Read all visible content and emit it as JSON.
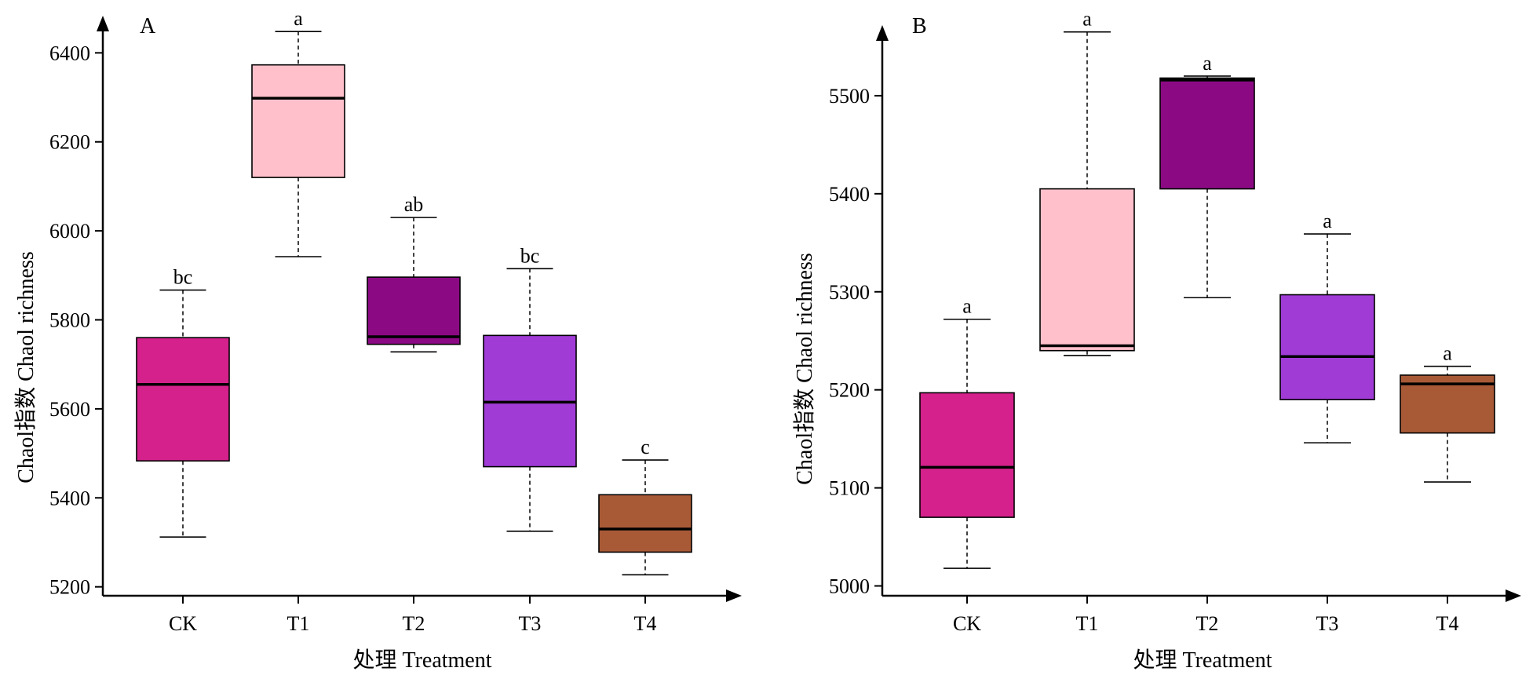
{
  "chart_data": [
    {
      "type": "boxplot",
      "panel_label": "A",
      "xlabel": "处理 Treatment",
      "ylabel": "Chaol指数 Chaol richness",
      "categories": [
        "CK",
        "T1",
        "T2",
        "T3",
        "T4"
      ],
      "ylim": [
        5180,
        6480
      ],
      "yticks": [
        5200,
        5400,
        5600,
        5800,
        6000,
        6200,
        6400
      ],
      "boxes": [
        {
          "name": "CK",
          "min": 5312,
          "q1": 5483,
          "median": 5655,
          "q3": 5760,
          "max": 5867,
          "color": "#D4218B",
          "letter": "bc"
        },
        {
          "name": "T1",
          "min": 5942,
          "q1": 6120,
          "median": 6298,
          "q3": 6373,
          "max": 6448,
          "color": "#FFC0CB",
          "letter": "a"
        },
        {
          "name": "T2",
          "min": 5728,
          "q1": 5745,
          "median": 5762,
          "q3": 5896,
          "max": 6030,
          "color": "#8B0A84",
          "letter": "ab"
        },
        {
          "name": "T3",
          "min": 5325,
          "q1": 5470,
          "median": 5615,
          "q3": 5765,
          "max": 5915,
          "color": "#A03BD6",
          "letter": "bc"
        },
        {
          "name": "T4",
          "min": 5227,
          "q1": 5278,
          "median": 5330,
          "q3": 5407,
          "max": 5485,
          "color": "#A85A37",
          "letter": "c"
        }
      ]
    },
    {
      "type": "boxplot",
      "panel_label": "B",
      "xlabel": "处理 Treatment",
      "ylabel": "Chaol指数 Chaol richness",
      "categories": [
        "CK",
        "T1",
        "T2",
        "T3",
        "T4"
      ],
      "ylim": [
        4990,
        5580
      ],
      "yticks": [
        5000,
        5100,
        5200,
        5300,
        5400,
        5500
      ],
      "boxes": [
        {
          "name": "CK",
          "min": 5018,
          "q1": 5070,
          "median": 5121,
          "q3": 5197,
          "max": 5272,
          "color": "#D4218B",
          "letter": "a"
        },
        {
          "name": "T1",
          "min": 5235,
          "q1": 5240,
          "median": 5245,
          "q3": 5405,
          "max": 5565,
          "color": "#FFC0CB",
          "letter": "a"
        },
        {
          "name": "T2",
          "min": 5294,
          "q1": 5405,
          "median": 5516,
          "q3": 5518,
          "max": 5520,
          "color": "#8B0A84",
          "letter": "a"
        },
        {
          "name": "T3",
          "min": 5146,
          "q1": 5190,
          "median": 5234,
          "q3": 5297,
          "max": 5359,
          "color": "#A03BD6",
          "letter": "a"
        },
        {
          "name": "T4",
          "min": 5106,
          "q1": 5156,
          "median": 5206,
          "q3": 5215,
          "max": 5224,
          "color": "#A85A37",
          "letter": "a"
        }
      ]
    }
  ]
}
